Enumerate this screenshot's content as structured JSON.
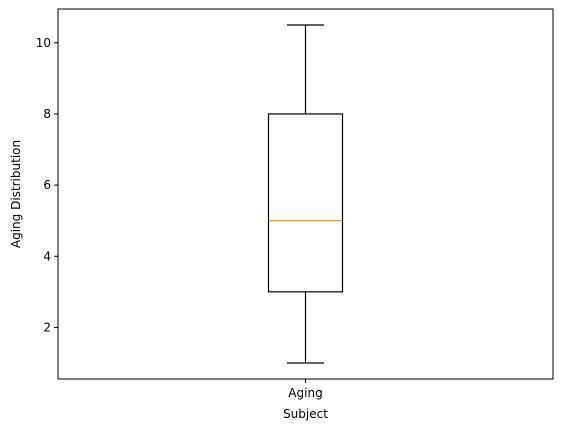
{
  "chart_data": {
    "type": "box",
    "categories": [
      "Aging"
    ],
    "boxes": [
      {
        "name": "Aging",
        "whisker_low": 1.0,
        "q1": 3.0,
        "median": 5.0,
        "q3": 8.0,
        "whisker_high": 10.5
      }
    ],
    "title": "",
    "xlabel": "Subject",
    "ylabel": "Aging Distribution",
    "ylim": [
      0.55,
      10.95
    ],
    "yticks": [
      2,
      4,
      6,
      8,
      10
    ],
    "grid": false,
    "colors": {
      "box": "#000000",
      "median": "#ff7f0e",
      "axes": "#000000"
    }
  }
}
